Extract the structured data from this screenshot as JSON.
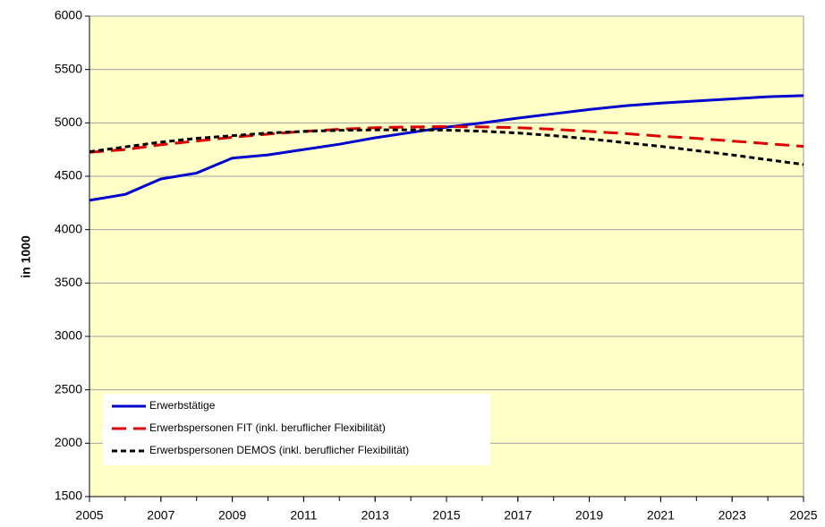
{
  "chart_data": {
    "type": "line",
    "y_label": "in 1000",
    "x": [
      2005,
      2006,
      2007,
      2008,
      2009,
      2010,
      2011,
      2012,
      2013,
      2014,
      2015,
      2016,
      2017,
      2018,
      2019,
      2020,
      2021,
      2022,
      2023,
      2024,
      2025
    ],
    "xlim": [
      2005,
      2025
    ],
    "xticks": [
      2005,
      2007,
      2009,
      2011,
      2013,
      2015,
      2017,
      2019,
      2021,
      2023,
      2025
    ],
    "ylim": [
      1500,
      6000
    ],
    "yticks": [
      1500,
      2000,
      2500,
      3000,
      3500,
      4000,
      4500,
      5000,
      5500,
      6000
    ],
    "grid": true,
    "legend": "lower left",
    "series": [
      {
        "name": "Erwerbstätige",
        "color": "#0000cc",
        "dash": "solid",
        "values": [
          4275,
          4330,
          4475,
          4530,
          4670,
          4700,
          4750,
          4800,
          4860,
          4910,
          4960,
          5000,
          5045,
          5085,
          5125,
          5160,
          5185,
          5205,
          5225,
          5245,
          5255
        ]
      },
      {
        "name": "Erwerbspersonen FIT (inkl. beruflicher Flexibilität)",
        "color": "#dd0000",
        "dash": "long",
        "values": [
          4725,
          4750,
          4795,
          4830,
          4865,
          4895,
          4920,
          4940,
          4955,
          4962,
          4965,
          4962,
          4955,
          4940,
          4920,
          4900,
          4875,
          4855,
          4830,
          4805,
          4780
        ]
      },
      {
        "name": "Erwerbspersonen DEMOS (inkl. beruflicher Flexibilität)",
        "color": "#000000",
        "dash": "short",
        "values": [
          4730,
          4775,
          4820,
          4855,
          4880,
          4905,
          4920,
          4930,
          4935,
          4935,
          4932,
          4922,
          4905,
          4880,
          4850,
          4815,
          4780,
          4740,
          4700,
          4655,
          4610
        ]
      }
    ]
  }
}
